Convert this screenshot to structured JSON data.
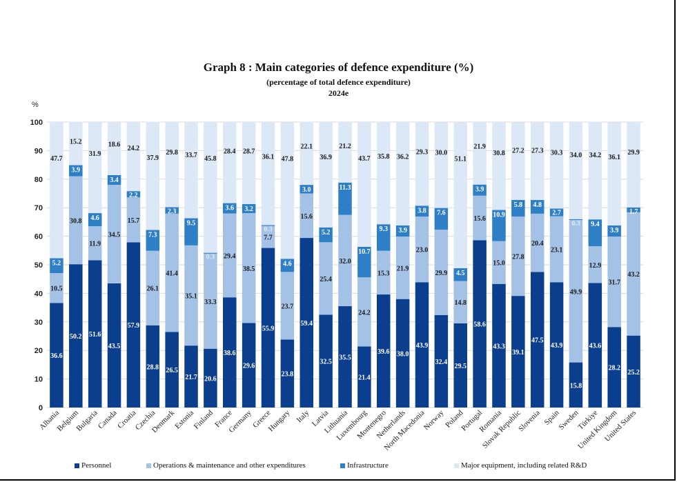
{
  "chart_data": {
    "type": "bar",
    "stacked": true,
    "title": "Graph 8 : Main categories of defence expenditure (%)",
    "subtitle": "(percentage of total defence expenditure)",
    "subtitle2": "2024e",
    "ylabel": "%",
    "xlabel": "",
    "ylim": [
      0,
      100
    ],
    "yticks": [
      0,
      10,
      20,
      30,
      40,
      50,
      60,
      70,
      80,
      90,
      100
    ],
    "grid": true,
    "legend_position": "bottom",
    "categories": [
      "Albania",
      "Belgium",
      "Bulgaria",
      "Canada",
      "Croatia",
      "Czechia",
      "Denmark",
      "Estonia",
      "Finland",
      "France",
      "Germany",
      "Greece",
      "Hungary",
      "Italy",
      "Latvia",
      "Lithuania",
      "Luxembourg",
      "Montenegro",
      "Netherlands",
      "North Macedonia",
      "Norway",
      "Poland",
      "Portugal",
      "Romania",
      "Slovak Republic",
      "Slovenia",
      "Spain",
      "Sweden",
      "Türkiye",
      "United Kingdom",
      "United States"
    ],
    "series": [
      {
        "name": "Personnel",
        "color": "#0b3e8c",
        "label_color": "#ffffff",
        "values": [
          36.6,
          50.2,
          51.6,
          43.5,
          57.9,
          28.8,
          26.5,
          21.7,
          20.6,
          38.6,
          29.6,
          55.9,
          23.8,
          59.4,
          32.5,
          35.5,
          21.4,
          39.6,
          38.0,
          43.9,
          32.4,
          29.5,
          58.6,
          43.3,
          39.1,
          47.5,
          43.9,
          15.8,
          43.6,
          28.2,
          25.2
        ]
      },
      {
        "name": "Operations & maintenance and other expenditures",
        "color": "#a4c2e6",
        "label_color": "#1a1a1a",
        "values": [
          10.5,
          30.8,
          11.9,
          34.5,
          15.7,
          26.1,
          41.4,
          35.1,
          33.3,
          29.4,
          38.5,
          7.7,
          23.7,
          15.6,
          25.4,
          32.0,
          24.2,
          15.3,
          21.9,
          23.0,
          29.9,
          14.8,
          15.6,
          15.0,
          27.8,
          20.4,
          23.1,
          49.9,
          12.9,
          31.7,
          43.2
        ]
      },
      {
        "name": "Infrastructure",
        "color": "#2f7fc6",
        "label_color": "#ffffff",
        "values": [
          5.2,
          3.9,
          4.6,
          3.4,
          2.2,
          7.3,
          2.3,
          9.5,
          0.3,
          3.6,
          3.2,
          0.3,
          4.6,
          3.0,
          5.2,
          11.3,
          10.7,
          9.3,
          3.9,
          3.8,
          7.6,
          4.5,
          3.9,
          10.9,
          5.8,
          4.8,
          2.7,
          0.3,
          9.4,
          3.9,
          1.7
        ]
      },
      {
        "name": "Major equipment, including related R&D",
        "color": "#dde8f6",
        "label_color": "#1a1a1a",
        "values": [
          47.7,
          15.2,
          31.9,
          18.6,
          24.2,
          37.9,
          29.8,
          33.7,
          45.8,
          28.4,
          28.7,
          36.1,
          47.8,
          22.1,
          36.9,
          21.2,
          43.7,
          35.8,
          36.2,
          29.3,
          30.0,
          51.1,
          21.9,
          30.8,
          27.2,
          27.3,
          30.3,
          34.0,
          34.2,
          36.1,
          29.9
        ]
      }
    ]
  }
}
